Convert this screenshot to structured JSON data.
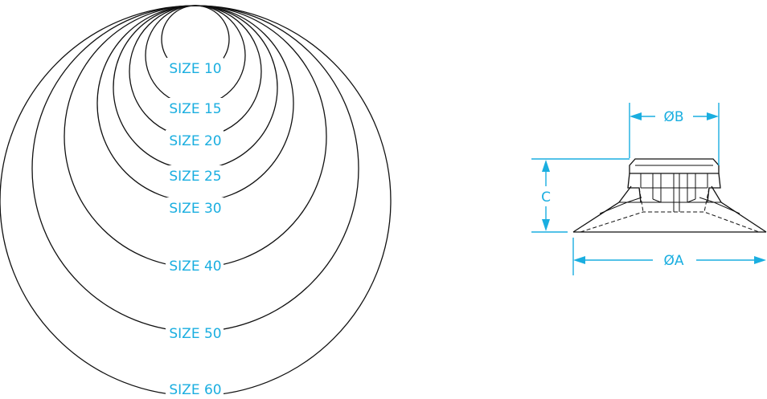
{
  "size_labels": [
    "SIZE 10",
    "SIZE 15",
    "SIZE 20",
    "SIZE 25",
    "SIZE 30",
    "SIZE 40",
    "SIZE 50",
    "SIZE 60"
  ],
  "dimensions": {
    "outer_diameter": "ØA",
    "top_diameter": "ØB",
    "height": "C"
  },
  "colors": {
    "line": "#111111",
    "dimension": "#1aaee0",
    "background": "#ffffff"
  }
}
